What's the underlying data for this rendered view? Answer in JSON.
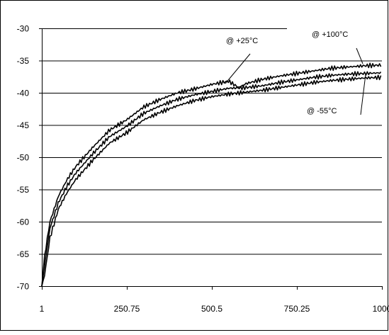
{
  "chart_data": {
    "type": "line",
    "title": "",
    "xlabel": "",
    "ylabel": "",
    "xlim": [
      1,
      1000
    ],
    "ylim": [
      -70,
      -30
    ],
    "x_ticks": [
      1,
      250.75,
      500.5,
      750.25,
      1000
    ],
    "x_tick_labels": [
      "1",
      "250.75",
      "500.5",
      "750.25",
      "1000"
    ],
    "y_ticks": [
      -30,
      -35,
      -40,
      -45,
      -50,
      -55,
      -60,
      -65,
      -70
    ],
    "grid": "horizontal",
    "legend": "none",
    "line_color": "#000000",
    "series": [
      {
        "name": "@ +100°C",
        "x": [
          1,
          10,
          25,
          50,
          75,
          100,
          150,
          200,
          250,
          300,
          350,
          400,
          450,
          500,
          550,
          580,
          600,
          650,
          700,
          750,
          800,
          850,
          900,
          950,
          1000
        ],
        "y": [
          -70,
          -65,
          -60,
          -56,
          -53.5,
          -51.5,
          -48.5,
          -45.8,
          -44.2,
          -42.2,
          -41,
          -40,
          -39.4,
          -38.7,
          -38.2,
          -39.2,
          -38.6,
          -37.9,
          -37.4,
          -37,
          -36.6,
          -36.2,
          -36,
          -35.8,
          -35.7
        ]
      },
      {
        "name": "@ +25°C",
        "x": [
          1,
          10,
          25,
          50,
          75,
          100,
          150,
          200,
          250,
          300,
          350,
          400,
          450,
          500,
          550,
          600,
          650,
          700,
          750,
          800,
          850,
          900,
          950,
          1000
        ],
        "y": [
          -70,
          -66.5,
          -61,
          -57,
          -54.5,
          -52.5,
          -49.5,
          -46.8,
          -45.2,
          -43.2,
          -42,
          -41,
          -40.3,
          -39.8,
          -39.3,
          -39.2,
          -38.9,
          -38.4,
          -38,
          -37.6,
          -37.3,
          -37.1,
          -37,
          -36.9
        ]
      },
      {
        "name": "@ -55°C",
        "x": [
          1,
          10,
          25,
          50,
          75,
          100,
          150,
          200,
          250,
          300,
          350,
          400,
          450,
          500,
          550,
          600,
          650,
          700,
          750,
          800,
          850,
          900,
          950,
          1000
        ],
        "y": [
          -70,
          -68,
          -62.5,
          -58,
          -55.5,
          -53.5,
          -50.5,
          -47.8,
          -46.2,
          -44.2,
          -43,
          -42,
          -41.2,
          -40.6,
          -40.2,
          -39.9,
          -39.6,
          -39.2,
          -38.8,
          -38.4,
          -38.1,
          -37.9,
          -37.7,
          -37.6
        ]
      }
    ],
    "annotations": [
      "@ +25°C",
      "@ +100°C",
      "@ -55°C"
    ]
  }
}
